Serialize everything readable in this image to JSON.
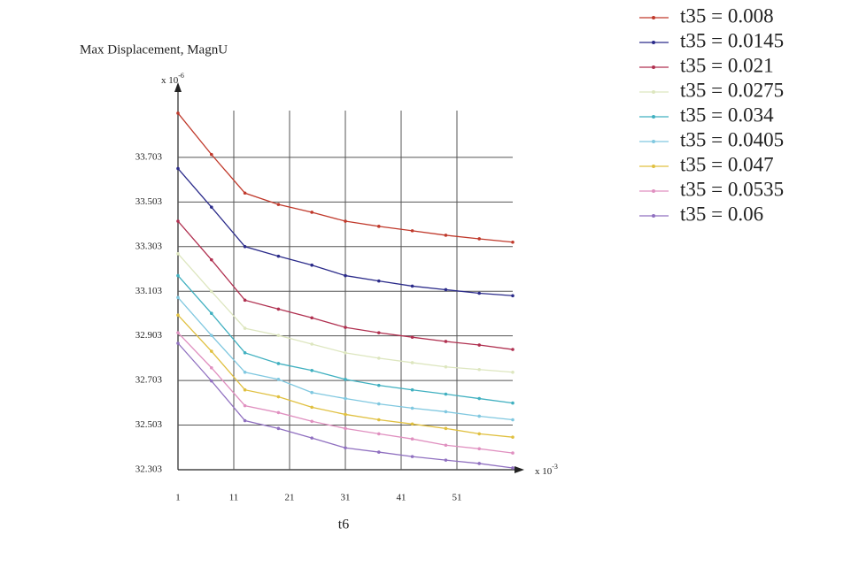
{
  "chart_data": {
    "type": "line",
    "title": "Max Displacement, MagnU",
    "x_label": "t6",
    "y_multiplier": {
      "base": "x 10",
      "exponent": "-6"
    },
    "x_multiplier": {
      "base": "x 10",
      "exponent": "-3"
    },
    "x": [
      1,
      7,
      13,
      19,
      25,
      31,
      37,
      43,
      49,
      55,
      61
    ],
    "xlim": [
      1,
      61
    ],
    "xticks": [
      1,
      11,
      21,
      31,
      41,
      51
    ],
    "ylim": [
      32.303,
      34.0
    ],
    "yticks": [
      32.303,
      32.503,
      32.703,
      32.903,
      33.103,
      33.303,
      33.503,
      33.703
    ],
    "grid": true,
    "series": [
      {
        "name": "t35 = 0.008",
        "color": "#c0392b",
        "values": [
          33.901,
          33.716,
          33.543,
          33.492,
          33.457,
          33.417,
          33.394,
          33.374,
          33.354,
          33.338,
          33.323
        ]
      },
      {
        "name": "t35 = 0.0145",
        "color": "#2b2b8a",
        "values": [
          33.653,
          33.48,
          33.303,
          33.26,
          33.22,
          33.173,
          33.149,
          33.126,
          33.11,
          33.094,
          33.083
        ]
      },
      {
        "name": "t35 = 0.021",
        "color": "#b03050",
        "values": [
          33.417,
          33.244,
          33.063,
          33.023,
          32.984,
          32.941,
          32.917,
          32.897,
          32.878,
          32.862,
          32.842
        ]
      },
      {
        "name": "t35 = 0.0275",
        "color": "#dde6bf",
        "values": [
          33.271,
          33.102,
          32.937,
          32.905,
          32.866,
          32.827,
          32.803,
          32.783,
          32.764,
          32.752,
          32.74
        ]
      },
      {
        "name": "t35 = 0.034",
        "color": "#40b0c0",
        "values": [
          33.173,
          33.004,
          32.827,
          32.779,
          32.748,
          32.708,
          32.681,
          32.661,
          32.642,
          32.622,
          32.602
        ]
      },
      {
        "name": "t35 = 0.0405",
        "color": "#80c8e0",
        "values": [
          33.075,
          32.905,
          32.74,
          32.708,
          32.649,
          32.622,
          32.598,
          32.579,
          32.563,
          32.543,
          32.527
        ]
      },
      {
        "name": "t35 = 0.047",
        "color": "#e0c040",
        "values": [
          32.996,
          32.834,
          32.661,
          32.63,
          32.583,
          32.551,
          32.527,
          32.508,
          32.488,
          32.464,
          32.449
        ]
      },
      {
        "name": "t35 = 0.0535",
        "color": "#e090c0",
        "values": [
          32.917,
          32.76,
          32.59,
          32.559,
          32.52,
          32.488,
          32.464,
          32.441,
          32.413,
          32.397,
          32.378
        ]
      },
      {
        "name": "t35 = 0.06",
        "color": "#9070c0",
        "values": [
          32.87,
          32.701,
          32.523,
          32.488,
          32.445,
          32.401,
          32.382,
          32.362,
          32.346,
          32.331,
          32.311
        ]
      }
    ]
  }
}
